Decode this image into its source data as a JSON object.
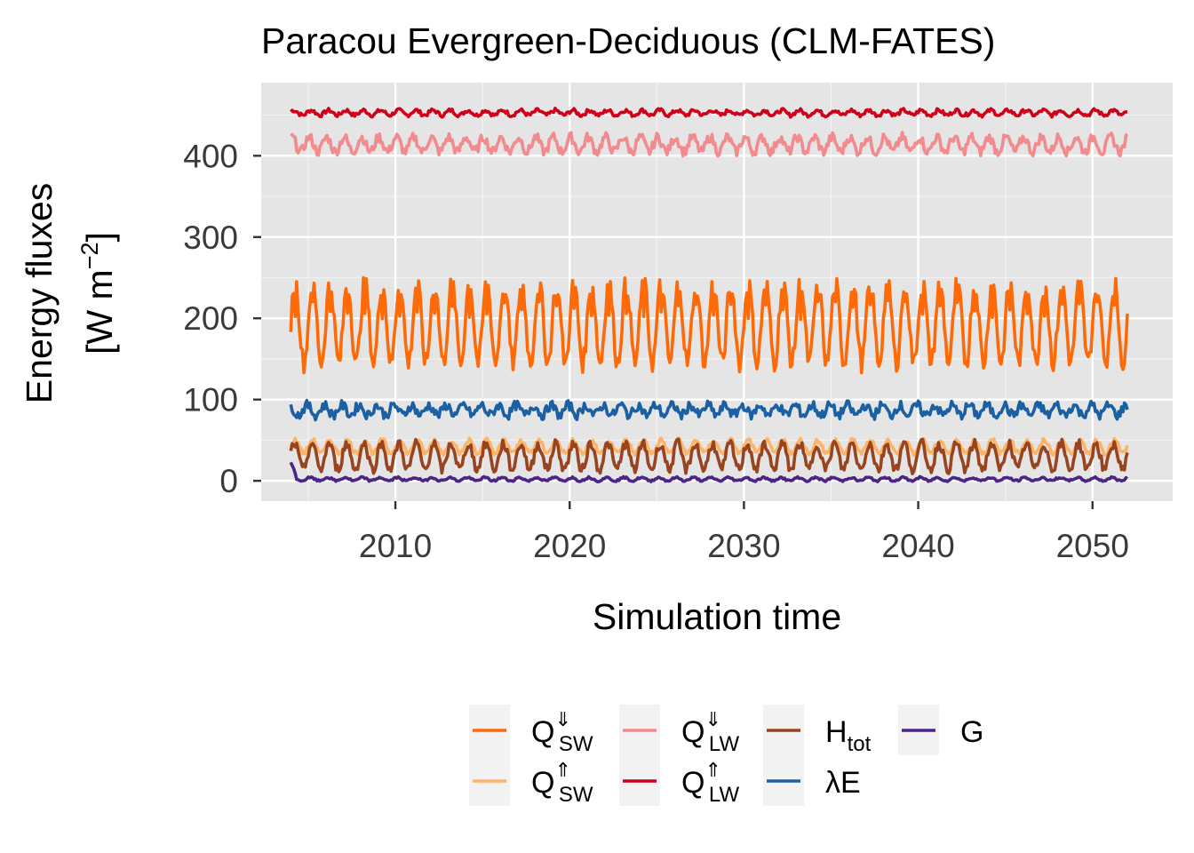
{
  "chart_data": {
    "type": "line",
    "title": "Paracou Evergreen-Deciduous (CLM-FATES)",
    "xlabel": "Simulation time",
    "ylabel_line1": "Energy fluxes",
    "ylabel_line2_main": "[W m",
    "ylabel_line2_sup": "−2",
    "ylabel_line2_end": "]",
    "x_start": 2004,
    "x_end": 2052,
    "xlim": [
      2002.3,
      2054.6
    ],
    "ylim": [
      -25,
      490
    ],
    "xticks": [
      2010,
      2020,
      2030,
      2040,
      2050
    ],
    "xtick_labels": [
      "2010",
      "2020",
      "2030",
      "2040",
      "2050"
    ],
    "yticks": [
      0,
      100,
      200,
      300,
      400
    ],
    "ytick_labels": [
      "0",
      "100",
      "200",
      "300",
      "400"
    ],
    "grid": true,
    "legend_position": "bottom",
    "series": [
      {
        "key": "sw_down",
        "label_main": "Q",
        "label_sup": "⇓",
        "label_sub": "SW",
        "color": "#FF6A09",
        "base": 195,
        "amp": 50,
        "noise": 12,
        "phase": 0.0
      },
      {
        "key": "sw_up",
        "label_main": "Q",
        "label_sup": "⇑",
        "label_sub": "SW",
        "color": "#FDB466",
        "base": 42,
        "amp": 8,
        "noise": 3,
        "phase": 0.0
      },
      {
        "key": "lw_down",
        "label_main": "Q",
        "label_sup": "⇓",
        "label_sub": "LW",
        "color": "#F28A8E",
        "base": 414,
        "amp": 9,
        "noise": 6,
        "phase": 1.2
      },
      {
        "key": "lw_up",
        "label_main": "Q",
        "label_sup": "⇑",
        "label_sub": "LW",
        "color": "#D0001A",
        "base": 453,
        "amp": 3,
        "noise": 2.5,
        "phase": 0.5
      },
      {
        "key": "h_tot",
        "label_main": "H",
        "label_sup": "",
        "label_sub": "tot",
        "color": "#994420",
        "base": 30,
        "amp": 16,
        "noise": 6,
        "phase": 0.3
      },
      {
        "key": "latent",
        "label_main": "λE",
        "label_sup": "",
        "label_sub": "",
        "color": "#1A60A2",
        "base": 87,
        "amp": 6,
        "noise": 6,
        "phase": 2.0
      },
      {
        "key": "ground",
        "label_main": "G",
        "label_sup": "",
        "label_sub": "",
        "color": "#4B2585",
        "base": 2,
        "amp": 2,
        "noise": 1.2,
        "phase": 0.8
      }
    ]
  }
}
